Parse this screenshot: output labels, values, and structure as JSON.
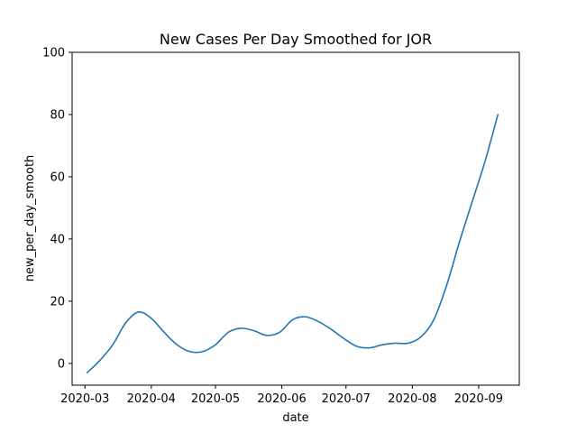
{
  "chart_data": {
    "type": "line",
    "title": "New Cases Per Day Smoothed for JOR",
    "xlabel": "date",
    "ylabel": "new_per_day_smooth",
    "ylim": [
      -7,
      100
    ],
    "xlim": [
      "2020-02-24",
      "2020-09-20"
    ],
    "x_ticks": [
      "2020-03",
      "2020-04",
      "2020-05",
      "2020-06",
      "2020-07",
      "2020-08",
      "2020-09"
    ],
    "y_ticks": [
      0,
      20,
      40,
      60,
      80,
      100
    ],
    "grid": false,
    "series": [
      {
        "color": "#1f77b4",
        "x": [
          "2020-03-02",
          "2020-03-08",
          "2020-03-14",
          "2020-03-20",
          "2020-03-26",
          "2020-04-01",
          "2020-04-07",
          "2020-04-13",
          "2020-04-19",
          "2020-04-25",
          "2020-05-01",
          "2020-05-07",
          "2020-05-13",
          "2020-05-19",
          "2020-05-25",
          "2020-05-31",
          "2020-06-06",
          "2020-06-12",
          "2020-06-18",
          "2020-06-24",
          "2020-06-30",
          "2020-07-06",
          "2020-07-12",
          "2020-07-18",
          "2020-07-24",
          "2020-07-30",
          "2020-08-05",
          "2020-08-11",
          "2020-08-17",
          "2020-08-23",
          "2020-08-29",
          "2020-09-04",
          "2020-09-10"
        ],
        "values": [
          -3,
          1,
          6,
          13,
          16.5,
          14.5,
          10,
          6,
          3.8,
          3.8,
          6,
          10,
          11.3,
          10.5,
          9,
          10,
          14,
          15,
          13.5,
          11,
          8,
          5.5,
          5,
          6,
          6.5,
          6.5,
          8.5,
          14,
          25,
          39,
          52,
          65,
          80
        ]
      }
    ]
  }
}
